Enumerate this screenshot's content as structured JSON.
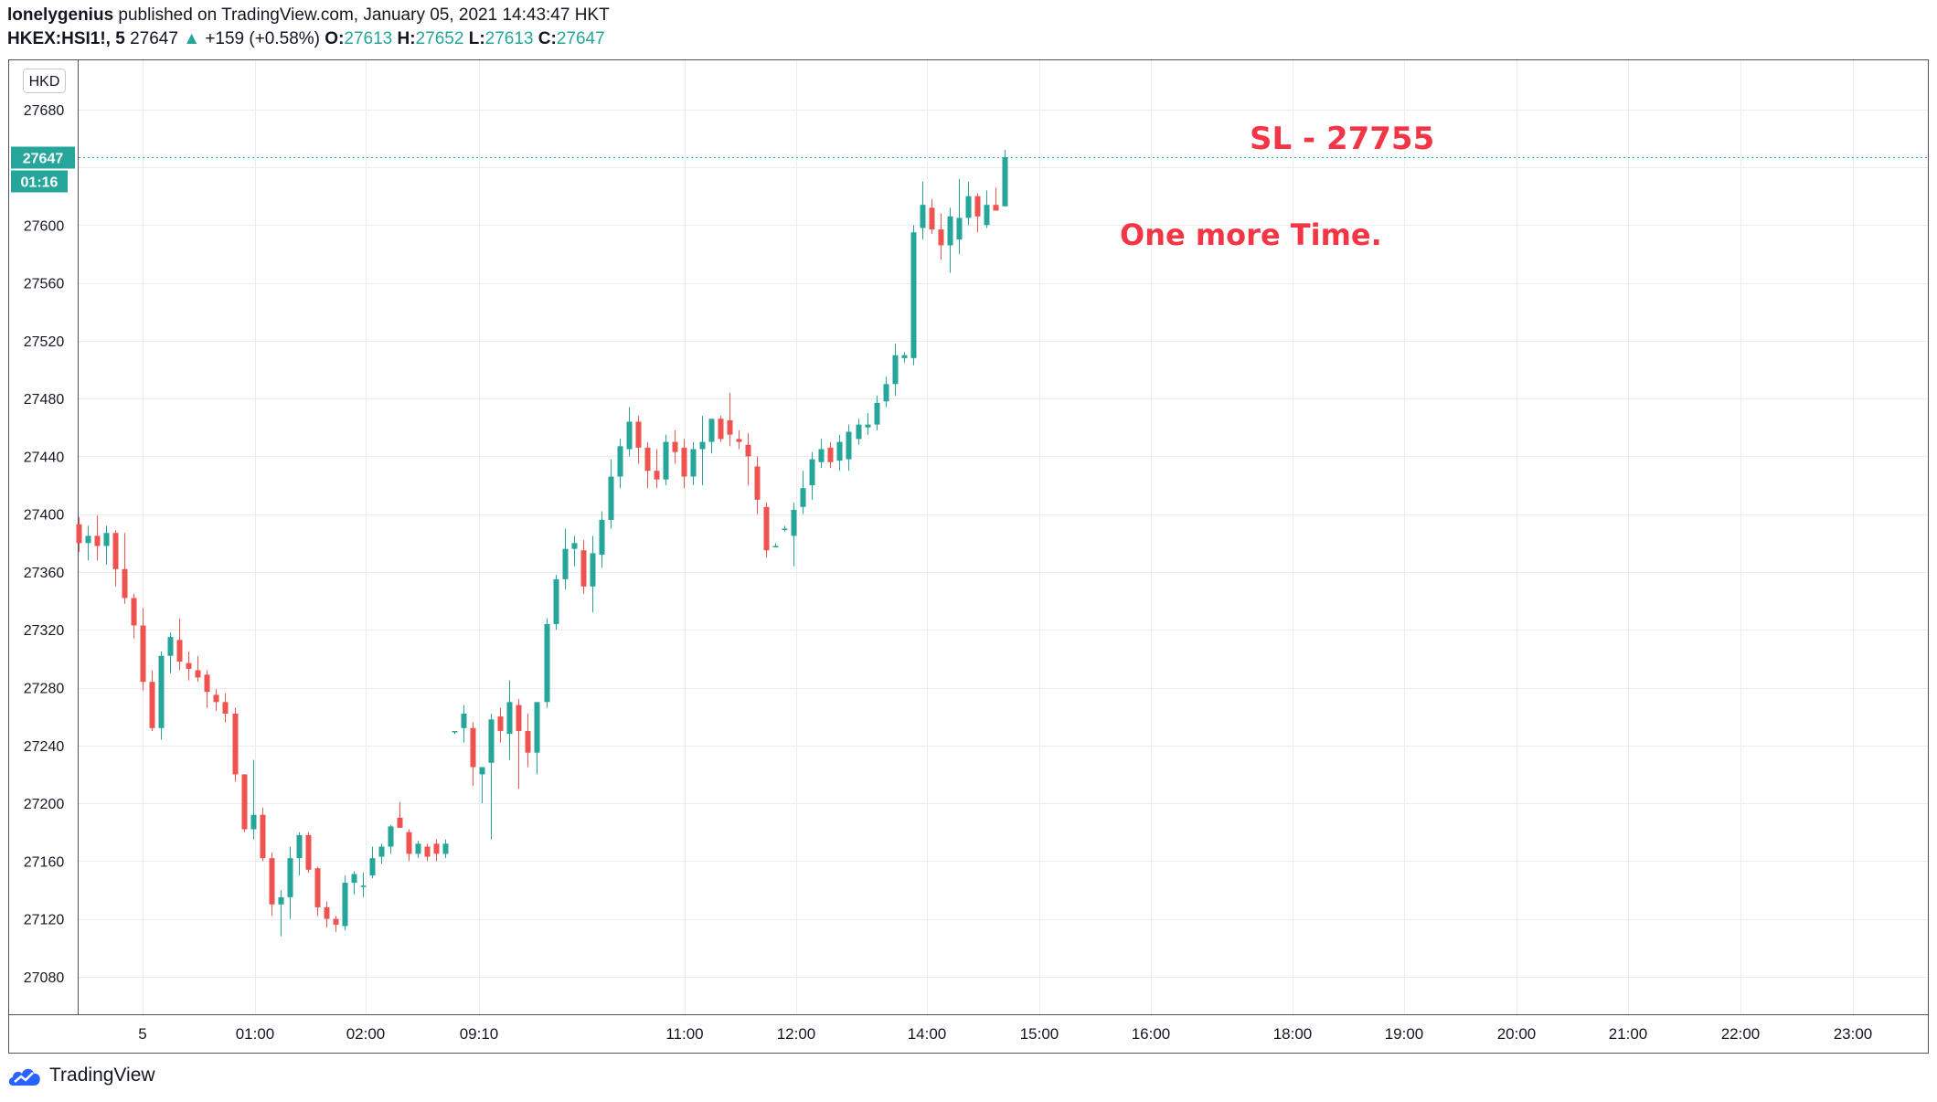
{
  "header": {
    "author": "lonelygenius",
    "published_text": "published on TradingView.com, January 05, 2021 14:43:47 HKT",
    "symbol": "HKEX:HSI1!, 5",
    "last": "27647",
    "up_arrow": "▲",
    "change": "+159 (+0.58%)",
    "o_label": "O:",
    "o_value": "27613",
    "h_label": "H:",
    "h_value": "27652",
    "l_label": "L:",
    "l_value": "27613",
    "c_label": "C:",
    "c_value": "27647"
  },
  "footer": {
    "brand": "TradingView"
  },
  "colors": {
    "up": "#26a69a",
    "down": "#ef5350",
    "annotation": "#f23645",
    "grid": "#e8edf2"
  },
  "chart_data": {
    "type": "candlestick",
    "currency": "HKD",
    "y_ticks": [
      27680,
      27640,
      27600,
      27560,
      27520,
      27480,
      27440,
      27400,
      27360,
      27320,
      27280,
      27240,
      27200,
      27160,
      27120,
      27080
    ],
    "y_tick_labels": [
      "27680",
      "27600",
      "27560",
      "27520",
      "27480",
      "27440",
      "27400",
      "27360",
      "27320",
      "27280",
      "27240",
      "27200",
      "27160",
      "27120",
      "27080"
    ],
    "ylim": [
      27054,
      27714
    ],
    "x_ticks": [
      "5",
      "01:00",
      "02:00",
      "09:10",
      "11:00",
      "12:00",
      "14:00",
      "15:00",
      "16:00",
      "18:00",
      "19:00",
      "20:00",
      "21:00",
      "22:00",
      "23:00"
    ],
    "last_price": {
      "value": 27647,
      "label": "27647",
      "countdown": "01:16"
    },
    "annotations": [
      "SL - 27755",
      "One more Time."
    ],
    "candles": [
      {
        "o": 27393,
        "h": 27398,
        "l": 27374,
        "c": 27380
      },
      {
        "o": 27380,
        "h": 27392,
        "l": 27368,
        "c": 27385
      },
      {
        "o": 27385,
        "h": 27399,
        "l": 27368,
        "c": 27378
      },
      {
        "o": 27378,
        "h": 27392,
        "l": 27365,
        "c": 27387
      },
      {
        "o": 27387,
        "h": 27389,
        "l": 27350,
        "c": 27362
      },
      {
        "o": 27362,
        "h": 27387,
        "l": 27338,
        "c": 27342
      },
      {
        "o": 27342,
        "h": 27345,
        "l": 27314,
        "c": 27323
      },
      {
        "o": 27323,
        "h": 27335,
        "l": 27278,
        "c": 27284
      },
      {
        "o": 27284,
        "h": 27292,
        "l": 27250,
        "c": 27252
      },
      {
        "o": 27252,
        "h": 27305,
        "l": 27244,
        "c": 27302
      },
      {
        "o": 27302,
        "h": 27318,
        "l": 27290,
        "c": 27315
      },
      {
        "o": 27313,
        "h": 27328,
        "l": 27292,
        "c": 27298
      },
      {
        "o": 27297,
        "h": 27305,
        "l": 27285,
        "c": 27293
      },
      {
        "o": 27292,
        "h": 27302,
        "l": 27284,
        "c": 27287
      },
      {
        "o": 27289,
        "h": 27292,
        "l": 27266,
        "c": 27277
      },
      {
        "o": 27275,
        "h": 27279,
        "l": 27264,
        "c": 27270
      },
      {
        "o": 27270,
        "h": 27276,
        "l": 27256,
        "c": 27262
      },
      {
        "o": 27262,
        "h": 27266,
        "l": 27215,
        "c": 27220
      },
      {
        "o": 27220,
        "h": 27220,
        "l": 27180,
        "c": 27182
      },
      {
        "o": 27182,
        "h": 27230,
        "l": 27175,
        "c": 27192
      },
      {
        "o": 27192,
        "h": 27197,
        "l": 27160,
        "c": 27162
      },
      {
        "o": 27162,
        "h": 27166,
        "l": 27122,
        "c": 27130
      },
      {
        "o": 27130,
        "h": 27140,
        "l": 27108,
        "c": 27135
      },
      {
        "o": 27135,
        "h": 27170,
        "l": 27120,
        "c": 27162
      },
      {
        "o": 27162,
        "h": 27180,
        "l": 27150,
        "c": 27178
      },
      {
        "o": 27178,
        "h": 27180,
        "l": 27152,
        "c": 27154
      },
      {
        "o": 27155,
        "h": 27156,
        "l": 27122,
        "c": 27128
      },
      {
        "o": 27128,
        "h": 27132,
        "l": 27114,
        "c": 27120
      },
      {
        "o": 27120,
        "h": 27122,
        "l": 27111,
        "c": 27116
      },
      {
        "o": 27115,
        "h": 27150,
        "l": 27112,
        "c": 27145
      },
      {
        "o": 27145,
        "h": 27153,
        "l": 27137,
        "c": 27151
      },
      {
        "o": 27143,
        "h": 27152,
        "l": 27135,
        "c": 27143
      },
      {
        "o": 27150,
        "h": 27170,
        "l": 27148,
        "c": 27162
      },
      {
        "o": 27163,
        "h": 27172,
        "l": 27158,
        "c": 27170
      },
      {
        "o": 27170,
        "h": 27185,
        "l": 27165,
        "c": 27184
      },
      {
        "o": 27190,
        "h": 27201,
        "l": 27183,
        "c": 27183
      },
      {
        "o": 27180,
        "h": 27182,
        "l": 27160,
        "c": 27165
      },
      {
        "o": 27165,
        "h": 27174,
        "l": 27162,
        "c": 27172
      },
      {
        "o": 27170,
        "h": 27172,
        "l": 27160,
        "c": 27163
      },
      {
        "o": 27172,
        "h": 27175,
        "l": 27160,
        "c": 27165
      },
      {
        "o": 27165,
        "h": 27175,
        "l": 27162,
        "c": 27172
      },
      {
        "o": 27250,
        "h": 27250,
        "l": 27248,
        "c": 27250
      },
      {
        "o": 27252,
        "h": 27268,
        "l": 27242,
        "c": 27262
      },
      {
        "o": 27252,
        "h": 27256,
        "l": 27212,
        "c": 27225
      },
      {
        "o": 27220,
        "h": 27225,
        "l": 27200,
        "c": 27225
      },
      {
        "o": 27228,
        "h": 27262,
        "l": 27175,
        "c": 27258
      },
      {
        "o": 27260,
        "h": 27266,
        "l": 27242,
        "c": 27250
      },
      {
        "o": 27248,
        "h": 27285,
        "l": 27230,
        "c": 27270
      },
      {
        "o": 27268,
        "h": 27272,
        "l": 27210,
        "c": 27250
      },
      {
        "o": 27250,
        "h": 27262,
        "l": 27225,
        "c": 27235
      },
      {
        "o": 27235,
        "h": 27270,
        "l": 27220,
        "c": 27270
      },
      {
        "o": 27270,
        "h": 27328,
        "l": 27266,
        "c": 27324
      },
      {
        "o": 27324,
        "h": 27358,
        "l": 27320,
        "c": 27355
      },
      {
        "o": 27355,
        "h": 27390,
        "l": 27348,
        "c": 27376
      },
      {
        "o": 27376,
        "h": 27385,
        "l": 27364,
        "c": 27380
      },
      {
        "o": 27375,
        "h": 27382,
        "l": 27345,
        "c": 27350
      },
      {
        "o": 27350,
        "h": 27385,
        "l": 27332,
        "c": 27373
      },
      {
        "o": 27372,
        "h": 27402,
        "l": 27363,
        "c": 27396
      },
      {
        "o": 27396,
        "h": 27438,
        "l": 27390,
        "c": 27426
      },
      {
        "o": 27426,
        "h": 27452,
        "l": 27418,
        "c": 27447
      },
      {
        "o": 27445,
        "h": 27474,
        "l": 27440,
        "c": 27464
      },
      {
        "o": 27464,
        "h": 27468,
        "l": 27435,
        "c": 27446
      },
      {
        "o": 27446,
        "h": 27450,
        "l": 27418,
        "c": 27430
      },
      {
        "o": 27430,
        "h": 27445,
        "l": 27418,
        "c": 27424
      },
      {
        "o": 27424,
        "h": 27455,
        "l": 27420,
        "c": 27450
      },
      {
        "o": 27450,
        "h": 27458,
        "l": 27435,
        "c": 27443
      },
      {
        "o": 27446,
        "h": 27452,
        "l": 27418,
        "c": 27426
      },
      {
        "o": 27426,
        "h": 27450,
        "l": 27420,
        "c": 27445
      },
      {
        "o": 27445,
        "h": 27468,
        "l": 27420,
        "c": 27450
      },
      {
        "o": 27450,
        "h": 27465,
        "l": 27442,
        "c": 27466
      },
      {
        "o": 27466,
        "h": 27468,
        "l": 27450,
        "c": 27452
      },
      {
        "o": 27465,
        "h": 27484,
        "l": 27447,
        "c": 27455
      },
      {
        "o": 27452,
        "h": 27458,
        "l": 27445,
        "c": 27450
      },
      {
        "o": 27448,
        "h": 27456,
        "l": 27420,
        "c": 27440
      },
      {
        "o": 27433,
        "h": 27440,
        "l": 27400,
        "c": 27410
      },
      {
        "o": 27405,
        "h": 27408,
        "l": 27370,
        "c": 27375
      },
      {
        "o": 27378,
        "h": 27380,
        "l": 27378,
        "c": 27378
      },
      {
        "o": 27390,
        "h": 27392,
        "l": 27388,
        "c": 27390
      },
      {
        "o": 27385,
        "h": 27408,
        "l": 27364,
        "c": 27403
      },
      {
        "o": 27405,
        "h": 27430,
        "l": 27400,
        "c": 27418
      },
      {
        "o": 27420,
        "h": 27443,
        "l": 27410,
        "c": 27438
      },
      {
        "o": 27436,
        "h": 27452,
        "l": 27432,
        "c": 27445
      },
      {
        "o": 27446,
        "h": 27450,
        "l": 27432,
        "c": 27436
      },
      {
        "o": 27437,
        "h": 27455,
        "l": 27430,
        "c": 27450
      },
      {
        "o": 27438,
        "h": 27462,
        "l": 27430,
        "c": 27457
      },
      {
        "o": 27452,
        "h": 27466,
        "l": 27448,
        "c": 27462
      },
      {
        "o": 27460,
        "h": 27470,
        "l": 27455,
        "c": 27462
      },
      {
        "o": 27462,
        "h": 27482,
        "l": 27458,
        "c": 27477
      },
      {
        "o": 27478,
        "h": 27495,
        "l": 27474,
        "c": 27490
      },
      {
        "o": 27490,
        "h": 27518,
        "l": 27482,
        "c": 27510
      },
      {
        "o": 27508,
        "h": 27512,
        "l": 27505,
        "c": 27510
      },
      {
        "o": 27508,
        "h": 27600,
        "l": 27503,
        "c": 27595
      },
      {
        "o": 27598,
        "h": 27630,
        "l": 27590,
        "c": 27614
      },
      {
        "o": 27612,
        "h": 27618,
        "l": 27594,
        "c": 27597
      },
      {
        "o": 27597,
        "h": 27608,
        "l": 27576,
        "c": 27586
      },
      {
        "o": 27586,
        "h": 27612,
        "l": 27567,
        "c": 27606
      },
      {
        "o": 27590,
        "h": 27632,
        "l": 27580,
        "c": 27605
      },
      {
        "o": 27605,
        "h": 27630,
        "l": 27600,
        "c": 27620
      },
      {
        "o": 27620,
        "h": 27622,
        "l": 27595,
        "c": 27606
      },
      {
        "o": 27600,
        "h": 27624,
        "l": 27598,
        "c": 27614
      },
      {
        "o": 27614,
        "h": 27626,
        "l": 27610,
        "c": 27610
      },
      {
        "o": 27613,
        "h": 27652,
        "l": 27613,
        "c": 27647
      }
    ]
  }
}
